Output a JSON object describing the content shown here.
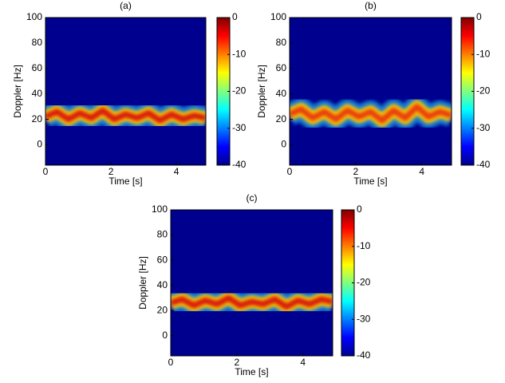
{
  "charts": [
    {
      "type": "spectrogram",
      "title": "(a)",
      "xlabel": "Time [s]",
      "ylabel": "Doppler [Hz]",
      "xlim": [
        0,
        4.9
      ],
      "ylim": [
        -16,
        100
      ],
      "xticks": [
        0,
        2,
        4
      ],
      "yticks": [
        0,
        20,
        40,
        60,
        80,
        100
      ],
      "clim": [
        -40,
        0
      ],
      "cticks": [
        0,
        -10,
        -20,
        -30,
        -40
      ],
      "x": [
        0,
        0.35,
        0.7,
        1.05,
        1.4,
        1.75,
        2.1,
        2.45,
        2.8,
        3.15,
        3.5,
        3.85,
        4.2,
        4.55,
        4.9
      ],
      "series": [
        {
          "color": "#d81a0a",
          "values": [
            22,
            26,
            20,
            25,
            21,
            27,
            20,
            24,
            21,
            25,
            19,
            24,
            20,
            23,
            21
          ]
        },
        {
          "color": "#5ff0e0",
          "values": [
            0,
            0,
            0,
            0,
            0,
            0,
            0,
            0,
            0,
            0,
            0,
            0,
            0,
            0,
            0
          ]
        }
      ]
    },
    {
      "type": "spectrogram",
      "title": "(b)",
      "xlabel": "Time [s]",
      "ylabel": "Doppler [Hz]",
      "xlim": [
        0,
        4.9
      ],
      "ylim": [
        -16,
        100
      ],
      "xticks": [
        0,
        2,
        4
      ],
      "yticks": [
        0,
        20,
        40,
        60,
        80,
        100
      ],
      "clim": [
        -40,
        0
      ],
      "cticks": [
        0,
        -10,
        -20,
        -30,
        -40
      ],
      "x": [
        0,
        0.35,
        0.7,
        1.05,
        1.4,
        1.75,
        2.1,
        2.45,
        2.8,
        3.15,
        3.5,
        3.85,
        4.2,
        4.55,
        4.9
      ],
      "series": [
        {
          "color": "#e8400a",
          "values": [
            24,
            28,
            21,
            26,
            20,
            27,
            22,
            26,
            19,
            27,
            21,
            30,
            22,
            26,
            23
          ]
        },
        {
          "color": "#5ff0e0",
          "values": [
            0,
            0,
            0,
            0,
            0,
            0,
            0,
            0,
            0,
            0,
            0,
            0,
            0,
            0,
            0
          ]
        }
      ]
    },
    {
      "type": "spectrogram",
      "title": "(c)",
      "xlabel": "Time [s]",
      "ylabel": "Doppler [Hz]",
      "xlim": [
        0,
        4.9
      ],
      "ylim": [
        -16,
        100
      ],
      "xticks": [
        0,
        2,
        4
      ],
      "yticks": [
        0,
        20,
        40,
        60,
        80,
        100
      ],
      "clim": [
        -40,
        0
      ],
      "cticks": [
        0,
        -10,
        -20,
        -30,
        -40
      ],
      "x": [
        0,
        0.35,
        0.7,
        1.05,
        1.4,
        1.75,
        2.1,
        2.45,
        2.8,
        3.15,
        3.5,
        3.85,
        4.2,
        4.55,
        4.9
      ],
      "series": [
        {
          "color": "#d81a0a",
          "values": [
            26,
            29,
            24,
            28,
            25,
            30,
            24,
            27,
            25,
            29,
            23,
            28,
            25,
            29,
            27
          ]
        },
        {
          "color": "#5ff0e0",
          "values": [
            0,
            0,
            0,
            0,
            0,
            0,
            0,
            0,
            0,
            0,
            0,
            0,
            0,
            0,
            0
          ]
        }
      ]
    }
  ]
}
